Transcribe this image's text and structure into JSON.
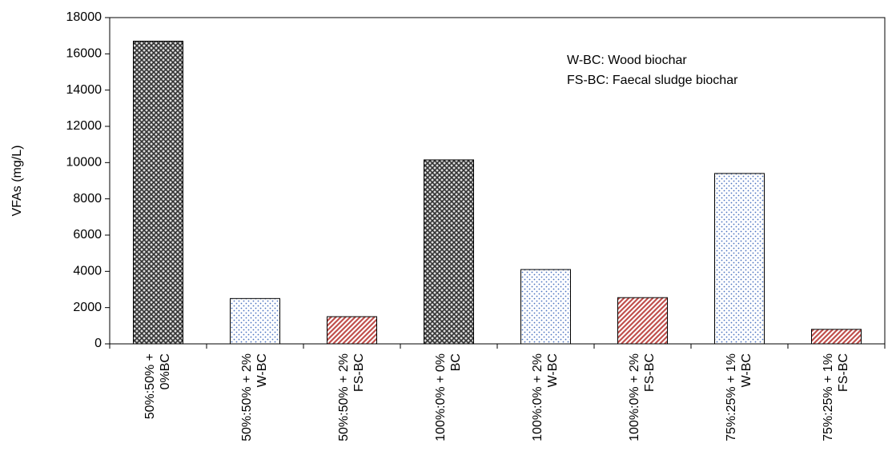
{
  "chart_data": {
    "type": "bar",
    "y_label": "VFAs (mg/L)",
    "annotations": [
      "W-BC: Wood biochar",
      "FS-BC: Faecal sludge biochar"
    ],
    "categories": [
      [
        "50%:50% +",
        "0%BC"
      ],
      [
        "50%:50% + 2%",
        "W-BC"
      ],
      [
        "50%:50% + 2%",
        "FS-BC"
      ],
      [
        "100%:0% + 0%",
        "BC"
      ],
      [
        "100%:0% + 2%",
        "W-BC"
      ],
      [
        "100%:0% + 2%",
        "FS-BC"
      ],
      [
        "75%:25% + 1%",
        "W-BC"
      ],
      [
        "75%:25% + 1%",
        "FS-BC"
      ]
    ],
    "values": [
      16700,
      2500,
      1500,
      10150,
      4100,
      2550,
      9400,
      800
    ],
    "colors": [
      "#333333",
      "#4a72c0",
      "#c0504d",
      "#333333",
      "#4a72c0",
      "#c0504d",
      "#4a72c0",
      "#c0504d"
    ],
    "patterns": [
      "crosshatch",
      "dots",
      "stripes",
      "crosshatch",
      "dots",
      "stripes",
      "dots",
      "stripes"
    ],
    "ylim": [
      0,
      18000
    ],
    "yticks": [
      0,
      2000,
      4000,
      6000,
      8000,
      10000,
      12000,
      14000,
      16000,
      18000
    ]
  }
}
